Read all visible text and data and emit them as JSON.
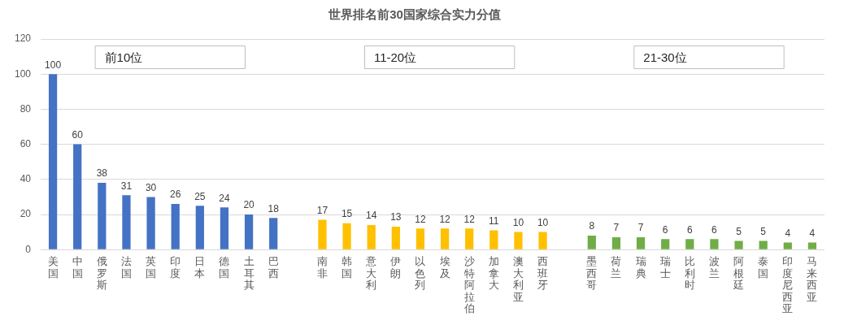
{
  "chart_data": {
    "type": "bar",
    "title": "世界排名前30国家综合实力分值",
    "categories": [
      "美国",
      "中国",
      "俄罗斯",
      "法国",
      "英国",
      "印度",
      "日本",
      "德国",
      "土耳其",
      "巴西",
      null,
      "南非",
      "韩国",
      "意大利",
      "伊朗",
      "以色列",
      "埃及",
      "沙特阿拉伯",
      "加拿大",
      "澳大利亚",
      "西班牙",
      null,
      "墨西哥",
      "荷兰",
      "瑞典",
      "瑞士",
      "比利时",
      "波兰",
      "阿根廷",
      "泰国",
      "印度尼西亚",
      "马来西亚"
    ],
    "values": [
      100,
      60,
      38,
      31,
      30,
      26,
      25,
      24,
      20,
      18,
      null,
      17,
      15,
      14,
      13,
      12,
      12,
      12,
      11,
      10,
      10,
      null,
      8,
      7,
      7,
      6,
      6,
      6,
      5,
      5,
      4,
      4
    ],
    "colors": [
      "#4472c4",
      "#4472c4",
      "#4472c4",
      "#4472c4",
      "#4472c4",
      "#4472c4",
      "#4472c4",
      "#4472c4",
      "#4472c4",
      "#4472c4",
      null,
      "#ffc000",
      "#ffc000",
      "#ffc000",
      "#ffc000",
      "#ffc000",
      "#ffc000",
      "#ffc000",
      "#ffc000",
      "#ffc000",
      "#ffc000",
      null,
      "#70ad47",
      "#70ad47",
      "#70ad47",
      "#70ad47",
      "#70ad47",
      "#70ad47",
      "#70ad47",
      "#70ad47",
      "#70ad47",
      "#70ad47"
    ],
    "ylim": [
      0,
      120
    ],
    "yticks": [
      0,
      20,
      40,
      60,
      80,
      100,
      120
    ],
    "grid": "y",
    "data_labels": true,
    "annotations": [
      "前10位",
      "11-20位",
      "21-30位"
    ]
  }
}
